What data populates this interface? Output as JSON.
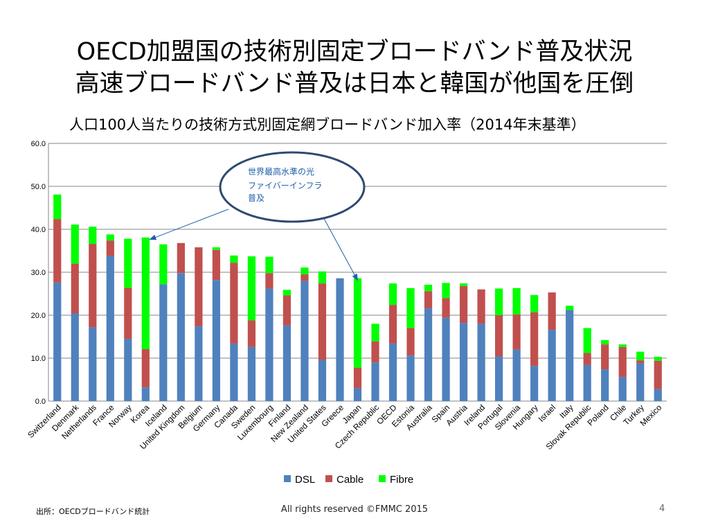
{
  "slide": {
    "title_line1": "OECD加盟国の技術別固定ブロードバンド普及状況",
    "title_line2": "高速ブロードバンド普及は日本と韓国が他国を圧倒",
    "source": "出所：OECDブロードバンド統計",
    "copyright": "All rights reserved ©FMMC   2015",
    "page_number": "4"
  },
  "annotation": {
    "lines": [
      "世界最高水準の光",
      "ファイバーインフラ",
      "普及"
    ],
    "targets": [
      "Korea",
      "Japan"
    ]
  },
  "colors": {
    "DSL": "#4f81bd",
    "Cable": "#c0504d",
    "Fibre": "#00ff00",
    "grid": "#868686",
    "annotation": "#1f5fa8",
    "ellipse_border": "#2f4a70"
  },
  "chart_data": {
    "type": "bar",
    "stacked": true,
    "title": "人口100人当たりの技術方式別固定網ブロードバンド加入率（2014年末基準）",
    "xlabel": "",
    "ylabel": "",
    "ylim": [
      0,
      60
    ],
    "yticks": [
      0,
      10,
      20,
      30,
      40,
      50,
      60
    ],
    "ytick_labels": [
      "0.0",
      "10.0",
      "20.0",
      "30.0",
      "40.0",
      "50.0",
      "60.0"
    ],
    "legend_position": "bottom",
    "categories": [
      "Switzerland",
      "Denmark",
      "Netherlands",
      "France",
      "Norway",
      "Korea",
      "Iceland",
      "United Kingdom",
      "Belgium",
      "Germany",
      "Canada",
      "Sweden",
      "Luxembourg",
      "Finland",
      "New Zealand",
      "United States",
      "Greece",
      "Japan",
      "Czech Republic",
      "OECD",
      "Estonia",
      "Australia",
      "Spain",
      "Austria",
      "Ireland",
      "Portugal",
      "Slovenia",
      "Hungary",
      "Israel",
      "Italy",
      "Slovak Republic",
      "Poland",
      "Chile",
      "Turkey",
      "Mexico"
    ],
    "series": [
      {
        "name": "DSL",
        "values": [
          27.6,
          20.4,
          17.2,
          33.8,
          14.5,
          3.2,
          27.2,
          29.8,
          17.4,
          28.2,
          13.4,
          12.6,
          26.2,
          17.6,
          28.0,
          9.6,
          28.6,
          3.0,
          9.0,
          13.4,
          10.6,
          21.6,
          19.4,
          18.2,
          18.0,
          10.4,
          12.0,
          8.2,
          16.6,
          21.2,
          8.4,
          7.4,
          5.6,
          8.8,
          2.8
        ]
      },
      {
        "name": "Cable",
        "values": [
          14.8,
          11.6,
          19.4,
          3.6,
          11.9,
          8.9,
          0.0,
          7.0,
          18.4,
          7.0,
          18.8,
          6.2,
          3.6,
          7.0,
          1.5,
          17.8,
          0.0,
          4.8,
          4.9,
          9.0,
          6.4,
          4.0,
          4.6,
          8.6,
          8.0,
          9.6,
          8.2,
          12.5,
          8.7,
          0.0,
          2.8,
          5.8,
          7.0,
          0.7,
          6.6
        ]
      },
      {
        "name": "Fibre",
        "values": [
          5.7,
          9.1,
          4.0,
          1.4,
          11.4,
          26.0,
          9.3,
          0.0,
          0.0,
          0.6,
          1.7,
          14.9,
          3.8,
          1.3,
          1.6,
          2.8,
          0.0,
          20.8,
          4.1,
          5.0,
          9.3,
          1.5,
          3.5,
          0.6,
          0.0,
          6.2,
          6.1,
          4.0,
          0.0,
          1.0,
          5.8,
          1.0,
          0.6,
          2.0,
          0.9
        ]
      }
    ]
  }
}
